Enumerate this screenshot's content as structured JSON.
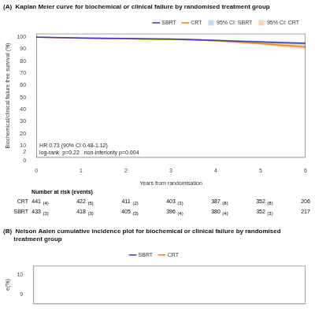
{
  "chart_data": [
    {
      "type": "line",
      "title": "(A)  Kaplan Meier curve for biochemical or clinical failure by randomised treatment group",
      "xlabel": "Years from randomisation",
      "ylabel": "Biochemical/clinical failure free survival (%)",
      "x": [
        0,
        0.3,
        0.6,
        1.0,
        1.5,
        2.0,
        2.5,
        3.0,
        3.5,
        4.0,
        4.5,
        5.0,
        5.5,
        6.0
      ],
      "series": [
        {
          "name": "95% CI: CRT",
          "type": "band",
          "color": "#F5C6A0",
          "lower": [
            100,
            99.5,
            99.1,
            98.6,
            98.2,
            98.0,
            97.8,
            97.7,
            97.0,
            96.4,
            94.9,
            93.6,
            91.4,
            90.0
          ],
          "upper": [
            100,
            100,
            99.9,
            99.6,
            99.4,
            99.2,
            99.0,
            98.7,
            98.2,
            97.6,
            96.7,
            96.0,
            95.0,
            94.0
          ]
        },
        {
          "name": "95% CI: SBRT",
          "type": "band",
          "color": "#A8C8F0",
          "lower": [
            100,
            99.6,
            99.3,
            98.9,
            98.7,
            98.5,
            98.3,
            98.1,
            97.5,
            96.8,
            96.0,
            95.2,
            94.3,
            93.7
          ],
          "upper": [
            100,
            100,
            99.9,
            99.7,
            99.5,
            99.3,
            99.1,
            98.9,
            98.5,
            98.0,
            97.4,
            97.0,
            96.5,
            96.1
          ]
        },
        {
          "name": "CRT",
          "type": "line",
          "color": "#E8820C",
          "values": [
            100,
            99.8,
            99.5,
            99.1,
            98.8,
            98.6,
            98.4,
            98.2,
            97.6,
            97.0,
            95.8,
            94.8,
            93.2,
            92.0
          ]
        },
        {
          "name": "SBRT",
          "type": "line",
          "color": "#3B3DB5",
          "values": [
            100,
            99.8,
            99.6,
            99.3,
            99.1,
            98.9,
            98.7,
            98.5,
            98.0,
            97.4,
            96.7,
            96.1,
            95.4,
            94.9
          ]
        }
      ],
      "xlim": [
        0,
        6
      ],
      "xticks": [
        0,
        1,
        2,
        3,
        4,
        5,
        6
      ],
      "ylim": [
        0,
        103
      ],
      "yticks": [
        0,
        2,
        10,
        20,
        30,
        40,
        50,
        60,
        70,
        80,
        90,
        100
      ],
      "grid": false,
      "legend": "upper right",
      "annotations": [
        "HR 0.73 (90% CI 0.48-1.12)",
        "log-rank  p=0.22   non-inferiority p=0.004"
      ],
      "at_risk": {
        "title": "Number at risk (events)",
        "rows": [
          {
            "name": "CRT",
            "values": [
              441,
              422,
              411,
              403,
              387,
              352,
              206
            ],
            "events": [
              "(4)",
              "(5)",
              "(2)",
              "(3)",
              "(8)",
              "(8)",
              null
            ]
          },
          {
            "name": "SBRT",
            "values": [
              433,
              418,
              405,
              396,
              380,
              352,
              217
            ],
            "events": [
              "(3)",
              "(3)",
              "(3)",
              "(4)",
              "(4)",
              "(3)",
              null
            ]
          }
        ]
      }
    },
    {
      "type": "line",
      "title": "(B)  Nelson Aalen cumulative incidence plot for biochemical or clinical failure by randomised\n      treatment group",
      "ylabel": "e(%)",
      "series": [
        {
          "name": "CRT",
          "color": "#E8820C",
          "values": []
        },
        {
          "name": "SBRT",
          "color": "#3B3DB5",
          "values": []
        }
      ],
      "xlim": [
        0,
        6
      ],
      "ylim": [
        8.5,
        10.5
      ],
      "yticks": [
        9,
        10
      ],
      "grid": false,
      "legend": "upper center",
      "tick_labels": "y"
    }
  ]
}
